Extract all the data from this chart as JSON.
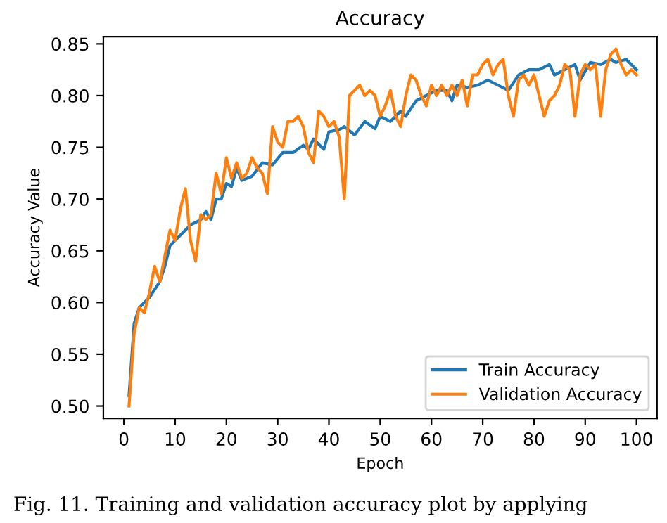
{
  "chart_data": {
    "type": "line",
    "title": "Accuracy",
    "xlabel": "Epoch",
    "ylabel": "Accuracy Value",
    "annotations": [
      "Fig. 11. Training and validation accuracy plot by applying"
    ],
    "series": [
      {
        "name": "Train Accuracy",
        "color": "#1f77b4",
        "x": [
          1,
          2,
          3,
          5,
          7,
          8,
          9,
          11,
          13,
          15,
          16,
          17,
          18,
          19,
          20,
          21,
          22,
          23,
          25,
          27,
          29,
          31,
          33,
          35,
          36,
          37,
          39,
          40,
          42,
          43,
          45,
          47,
          49,
          50,
          52,
          54,
          55,
          57,
          59,
          61,
          63,
          64,
          65,
          67,
          69,
          71,
          73,
          75,
          77,
          79,
          81,
          83,
          84,
          86,
          88,
          89,
          91,
          93,
          95,
          96,
          98,
          100
        ],
        "values": [
          0.51,
          0.58,
          0.595,
          0.605,
          0.62,
          0.635,
          0.655,
          0.665,
          0.675,
          0.68,
          0.688,
          0.68,
          0.7,
          0.7,
          0.715,
          0.712,
          0.73,
          0.718,
          0.722,
          0.735,
          0.733,
          0.745,
          0.745,
          0.752,
          0.748,
          0.758,
          0.748,
          0.765,
          0.767,
          0.77,
          0.762,
          0.775,
          0.768,
          0.78,
          0.775,
          0.785,
          0.78,
          0.795,
          0.8,
          0.805,
          0.805,
          0.795,
          0.81,
          0.808,
          0.81,
          0.815,
          0.81,
          0.805,
          0.82,
          0.825,
          0.825,
          0.83,
          0.82,
          0.825,
          0.83,
          0.815,
          0.832,
          0.83,
          0.835,
          0.832,
          0.835,
          0.825
        ]
      },
      {
        "name": "Validation Accuracy",
        "color": "#ff7f0e",
        "x": [
          1,
          2,
          3,
          4,
          5,
          6,
          7,
          8,
          9,
          10,
          11,
          12,
          13,
          14,
          15,
          16,
          17,
          18,
          19,
          20,
          21,
          22,
          23,
          24,
          25,
          26,
          27,
          28,
          29,
          30,
          31,
          32,
          33,
          34,
          35,
          36,
          37,
          38,
          39,
          40,
          41,
          42,
          43,
          44,
          45,
          46,
          47,
          48,
          49,
          50,
          51,
          52,
          53,
          54,
          55,
          56,
          57,
          58,
          59,
          60,
          61,
          62,
          63,
          64,
          65,
          66,
          67,
          68,
          69,
          70,
          71,
          72,
          73,
          74,
          75,
          76,
          77,
          78,
          79,
          80,
          81,
          82,
          83,
          84,
          85,
          86,
          87,
          88,
          89,
          90,
          91,
          92,
          93,
          94,
          95,
          96,
          97,
          98,
          99,
          100
        ],
        "values": [
          0.5,
          0.57,
          0.595,
          0.59,
          0.61,
          0.635,
          0.62,
          0.645,
          0.67,
          0.66,
          0.69,
          0.71,
          0.66,
          0.64,
          0.685,
          0.68,
          0.685,
          0.725,
          0.705,
          0.74,
          0.72,
          0.735,
          0.72,
          0.725,
          0.74,
          0.73,
          0.725,
          0.705,
          0.77,
          0.755,
          0.75,
          0.775,
          0.775,
          0.78,
          0.77,
          0.745,
          0.735,
          0.785,
          0.78,
          0.77,
          0.775,
          0.76,
          0.7,
          0.8,
          0.805,
          0.81,
          0.8,
          0.805,
          0.8,
          0.78,
          0.79,
          0.805,
          0.78,
          0.77,
          0.8,
          0.82,
          0.815,
          0.8,
          0.79,
          0.81,
          0.8,
          0.81,
          0.8,
          0.81,
          0.8,
          0.815,
          0.79,
          0.82,
          0.82,
          0.83,
          0.835,
          0.82,
          0.83,
          0.835,
          0.8,
          0.78,
          0.815,
          0.82,
          0.81,
          0.82,
          0.8,
          0.78,
          0.795,
          0.8,
          0.81,
          0.83,
          0.825,
          0.78,
          0.82,
          0.83,
          0.825,
          0.83,
          0.78,
          0.825,
          0.84,
          0.845,
          0.83,
          0.82,
          0.825,
          0.82
        ]
      }
    ],
    "xlim": [
      -4,
      104
    ],
    "xticks": [
      0,
      10,
      20,
      30,
      40,
      50,
      60,
      70,
      80,
      90,
      100
    ],
    "ylim": [
      0.488,
      0.857
    ],
    "yticks": [
      {
        "value": 0.5,
        "label": "0.50"
      },
      {
        "value": 0.55,
        "label": "0.55"
      },
      {
        "value": 0.6,
        "label": "0.60"
      },
      {
        "value": 0.65,
        "label": "0.65"
      },
      {
        "value": 0.7,
        "label": "0.70"
      },
      {
        "value": 0.75,
        "label": "0.75"
      },
      {
        "value": 0.8,
        "label": "0.80"
      },
      {
        "value": 0.85,
        "label": "0.85"
      }
    ],
    "legend": "lower right",
    "grid": false
  }
}
